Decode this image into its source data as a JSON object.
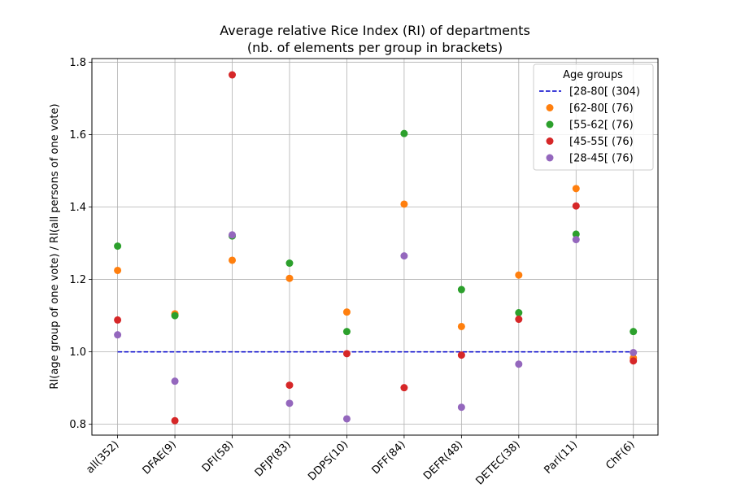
{
  "chart_data": {
    "type": "scatter",
    "title_line1": "Average relative Rice Index (RI) of departments",
    "title_line2": "(nb. of elements per group in brackets)",
    "xlabel": "",
    "ylabel": "RI(age group of one vote) / RI(all persons of one vote)",
    "ylim": [
      0.77,
      1.81
    ],
    "yticks": [
      "0.8",
      "1.0",
      "1.2",
      "1.4",
      "1.6",
      "1.8"
    ],
    "grid": true,
    "legend_title": "Age groups",
    "legend_position": "top-right",
    "categories": [
      "all(352)",
      "DFAE(9)",
      "DFI(58)",
      "DFJP(83)",
      "DDPS(10)",
      "DFF(84)",
      "DEFR(48)",
      "DETEC(38)",
      "Parl(11)",
      "ChF(6)"
    ],
    "reference_line": {
      "name": "[28-80[  (304)",
      "value": 1.0,
      "color": "#0000cc"
    },
    "series": [
      {
        "name": "[62-80[  (76)",
        "color": "#ff7f0e",
        "values": [
          1.225,
          1.105,
          1.253,
          1.203,
          1.11,
          1.408,
          1.07,
          1.212,
          1.451,
          0.983
        ]
      },
      {
        "name": "[55-62[  (76)",
        "color": "#2ca02c",
        "values": [
          1.292,
          1.1,
          1.32,
          1.245,
          1.056,
          1.603,
          1.172,
          1.108,
          1.325,
          1.056
        ]
      },
      {
        "name": "[45-55[  (76)",
        "color": "#d62728",
        "values": [
          1.088,
          0.81,
          1.765,
          0.908,
          0.995,
          0.901,
          0.991,
          1.09,
          1.403,
          0.975
        ]
      },
      {
        "name": "[28-45[  (76)",
        "color": "#9467bd",
        "values": [
          1.047,
          0.919,
          1.323,
          0.858,
          0.815,
          1.265,
          0.847,
          0.966,
          1.31,
          0.998
        ]
      }
    ]
  }
}
